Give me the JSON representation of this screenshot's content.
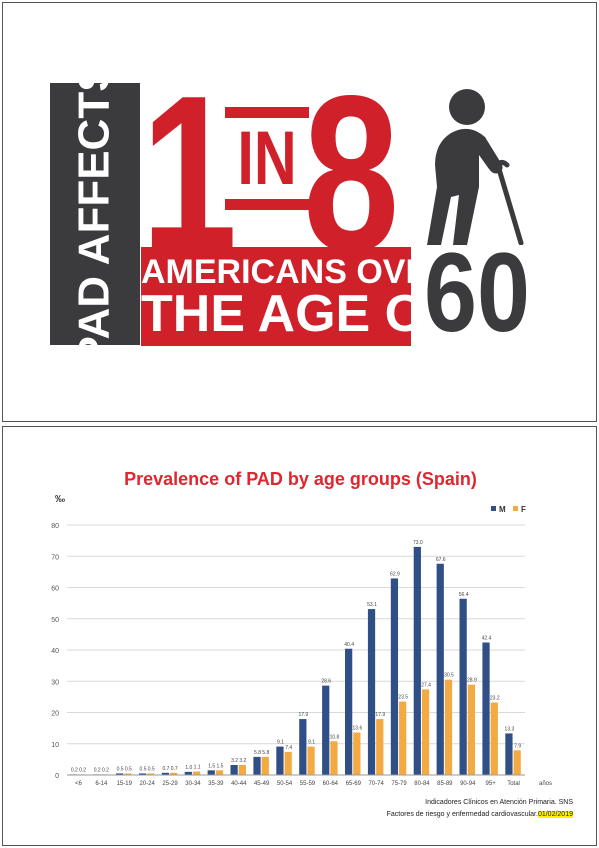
{
  "infographic": {
    "side_text": "PAD AFFECTS",
    "number_one": "1",
    "in_word": "IN",
    "number_eight": "8",
    "line1": "AMERICANS OVER",
    "line2": "THE AGE OF",
    "age": "60",
    "icon": "elderly-person-with-cane-icon",
    "colors": {
      "red": "#d0202a",
      "dark": "#3b3b3d"
    }
  },
  "chart_slide": {
    "title": "Prevalence of PAD by age groups (Spain)",
    "unit_label": "‰",
    "source_line1": "Indicadores Clínicos en Atención Primaria. SNS",
    "source_line2_prefix": "Factores de riesgo y enfermedad cardiovascular.",
    "source_date": "01/02/2019"
  },
  "chart_data": {
    "type": "bar",
    "title": "Prevalence of PAD by age groups (Spain)",
    "ylabel": "‰",
    "xlabel": "",
    "ylim": [
      0,
      80
    ],
    "yticks": [
      0,
      10,
      20,
      30,
      40,
      50,
      60,
      70,
      80
    ],
    "grid": true,
    "legend_position": "top-right",
    "categories": [
      "<6",
      "6-14",
      "15-19",
      "20-24",
      "25-29",
      "30-34",
      "35-39",
      "40-44",
      "45-49",
      "50-54",
      "55-59",
      "60-64",
      "65-69",
      "70-74",
      "75-79",
      "80-84",
      "85-89",
      "90-94",
      "95+",
      "Total"
    ],
    "series": [
      {
        "name": "M",
        "color": "#2f4f86",
        "values": [
          0.2,
          0.2,
          0.5,
          0.5,
          0.7,
          1.0,
          1.5,
          3.2,
          5.8,
          9.1,
          17.9,
          28.6,
          40.4,
          53.1,
          62.9,
          73.0,
          67.6,
          56.4,
          42.4,
          13.3
        ]
      },
      {
        "name": "F",
        "color": "#f4aa42",
        "values": [
          0.2,
          0.2,
          0.5,
          0.5,
          0.7,
          1.1,
          1.5,
          3.2,
          5.8,
          7.4,
          9.1,
          10.8,
          13.6,
          17.9,
          23.5,
          27.4,
          30.5,
          28.9,
          23.2,
          7.9
        ]
      }
    ],
    "x_axis_suffix": "años"
  }
}
